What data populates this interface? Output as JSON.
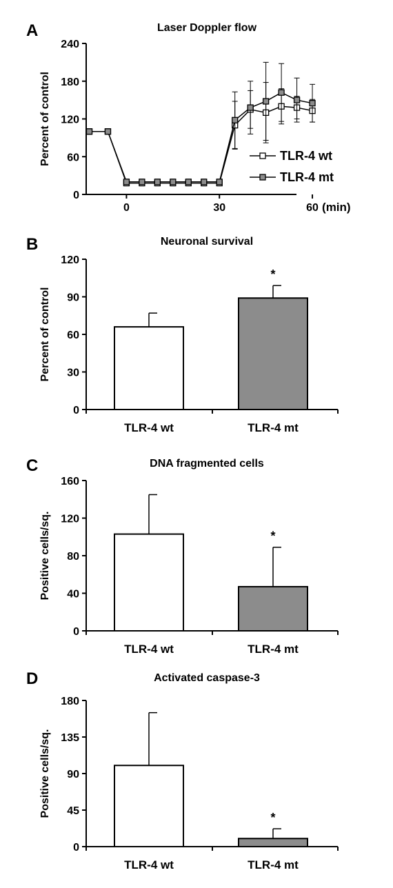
{
  "chart_data": [
    {
      "panel": "A",
      "type": "line",
      "title": "Laser Doppler flow",
      "ylabel": "Percent of control",
      "xlabel": "",
      "x_unit_label": "(min)",
      "ylim": [
        0,
        240
      ],
      "yticks": [
        "0",
        "60",
        "120",
        "180",
        "240"
      ],
      "xticks": [
        "0",
        "30",
        "60"
      ],
      "xlim": [
        -13,
        66
      ],
      "legend_position": "right",
      "series": [
        {
          "name": "TLR-4 wt",
          "marker": "open-square",
          "color": "#ffffff",
          "x": [
            -12,
            -6,
            0,
            5,
            10,
            15,
            20,
            25,
            30,
            35,
            40,
            45,
            50,
            55,
            60
          ],
          "y": [
            100,
            100,
            18,
            18,
            18,
            18,
            18,
            18,
            18,
            110,
            135,
            130,
            140,
            138,
            133
          ],
          "err": [
            0,
            0,
            2,
            2,
            2,
            2,
            2,
            2,
            2,
            38,
            30,
            48,
            28,
            18,
            18
          ]
        },
        {
          "name": "TLR-4 mt",
          "marker": "filled-square",
          "color": "#8c8c8c",
          "x": [
            -12,
            -6,
            0,
            5,
            10,
            15,
            20,
            25,
            30,
            35,
            40,
            45,
            50,
            55,
            60
          ],
          "y": [
            100,
            100,
            20,
            20,
            20,
            20,
            20,
            20,
            20,
            118,
            138,
            148,
            162,
            150,
            145
          ],
          "err": [
            0,
            0,
            2,
            2,
            2,
            2,
            2,
            2,
            2,
            45,
            42,
            62,
            46,
            35,
            30
          ]
        }
      ]
    },
    {
      "panel": "B",
      "type": "bar",
      "title": "Neuronal survival",
      "ylabel": "Percent of control",
      "ylim": [
        0,
        120
      ],
      "yticks": [
        "0",
        "30",
        "60",
        "90",
        "120"
      ],
      "categories": [
        "TLR-4 wt",
        "TLR-4 mt"
      ],
      "values": [
        66,
        89
      ],
      "errors": [
        11,
        10
      ],
      "colors": [
        "#ffffff",
        "#8c8c8c"
      ],
      "significance": [
        "",
        "*"
      ]
    },
    {
      "panel": "C",
      "type": "bar",
      "title": "DNA fragmented cells",
      "ylabel": "Positive cells/sq.",
      "ylim": [
        0,
        160
      ],
      "yticks": [
        "0",
        "40",
        "80",
        "120",
        "160"
      ],
      "categories": [
        "TLR-4 wt",
        "TLR-4 mt"
      ],
      "values": [
        103,
        47
      ],
      "errors": [
        42,
        42
      ],
      "colors": [
        "#ffffff",
        "#8c8c8c"
      ],
      "significance": [
        "",
        "*"
      ]
    },
    {
      "panel": "D",
      "type": "bar",
      "title": "Activated caspase-3",
      "ylabel": "Positive cells/sq.",
      "ylim": [
        0,
        180
      ],
      "yticks": [
        "0",
        "45",
        "90",
        "135",
        "180"
      ],
      "categories": [
        "TLR-4 wt",
        "TLR-4 mt"
      ],
      "values": [
        100,
        10
      ],
      "errors": [
        65,
        12
      ],
      "colors": [
        "#ffffff",
        "#8c8c8c"
      ],
      "significance": [
        "",
        "*"
      ]
    }
  ]
}
